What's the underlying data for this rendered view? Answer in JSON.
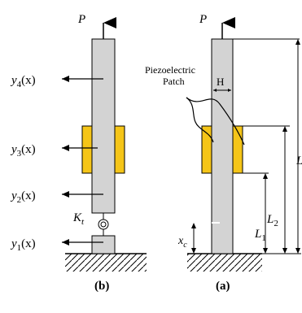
{
  "colors": {
    "beam": "#d3d3d3",
    "patch": "#f5c518",
    "line": "#000000",
    "background": "#ffffff"
  },
  "figure_b": {
    "caption": "(b)",
    "load_label": "P",
    "spring_label": "K",
    "spring_sub": "t",
    "deflections": [
      {
        "base": "y",
        "sub": "4",
        "arg": "(x)"
      },
      {
        "base": "y",
        "sub": "3",
        "arg": "(x)"
      },
      {
        "base": "y",
        "sub": "2",
        "arg": "(x)"
      },
      {
        "base": "y",
        "sub": "1",
        "arg": "(x)"
      }
    ]
  },
  "figure_a": {
    "caption": "(a)",
    "load_label": "P",
    "patch_label_line1": "Piezoelectric",
    "patch_label_line2": "Patch",
    "thickness_label": "H",
    "dim_total": "L",
    "dim_l2": "L",
    "dim_l2_sub": "2",
    "dim_l1": "L",
    "dim_l1_sub": "1",
    "crack_label": "x",
    "crack_sub": "c"
  }
}
